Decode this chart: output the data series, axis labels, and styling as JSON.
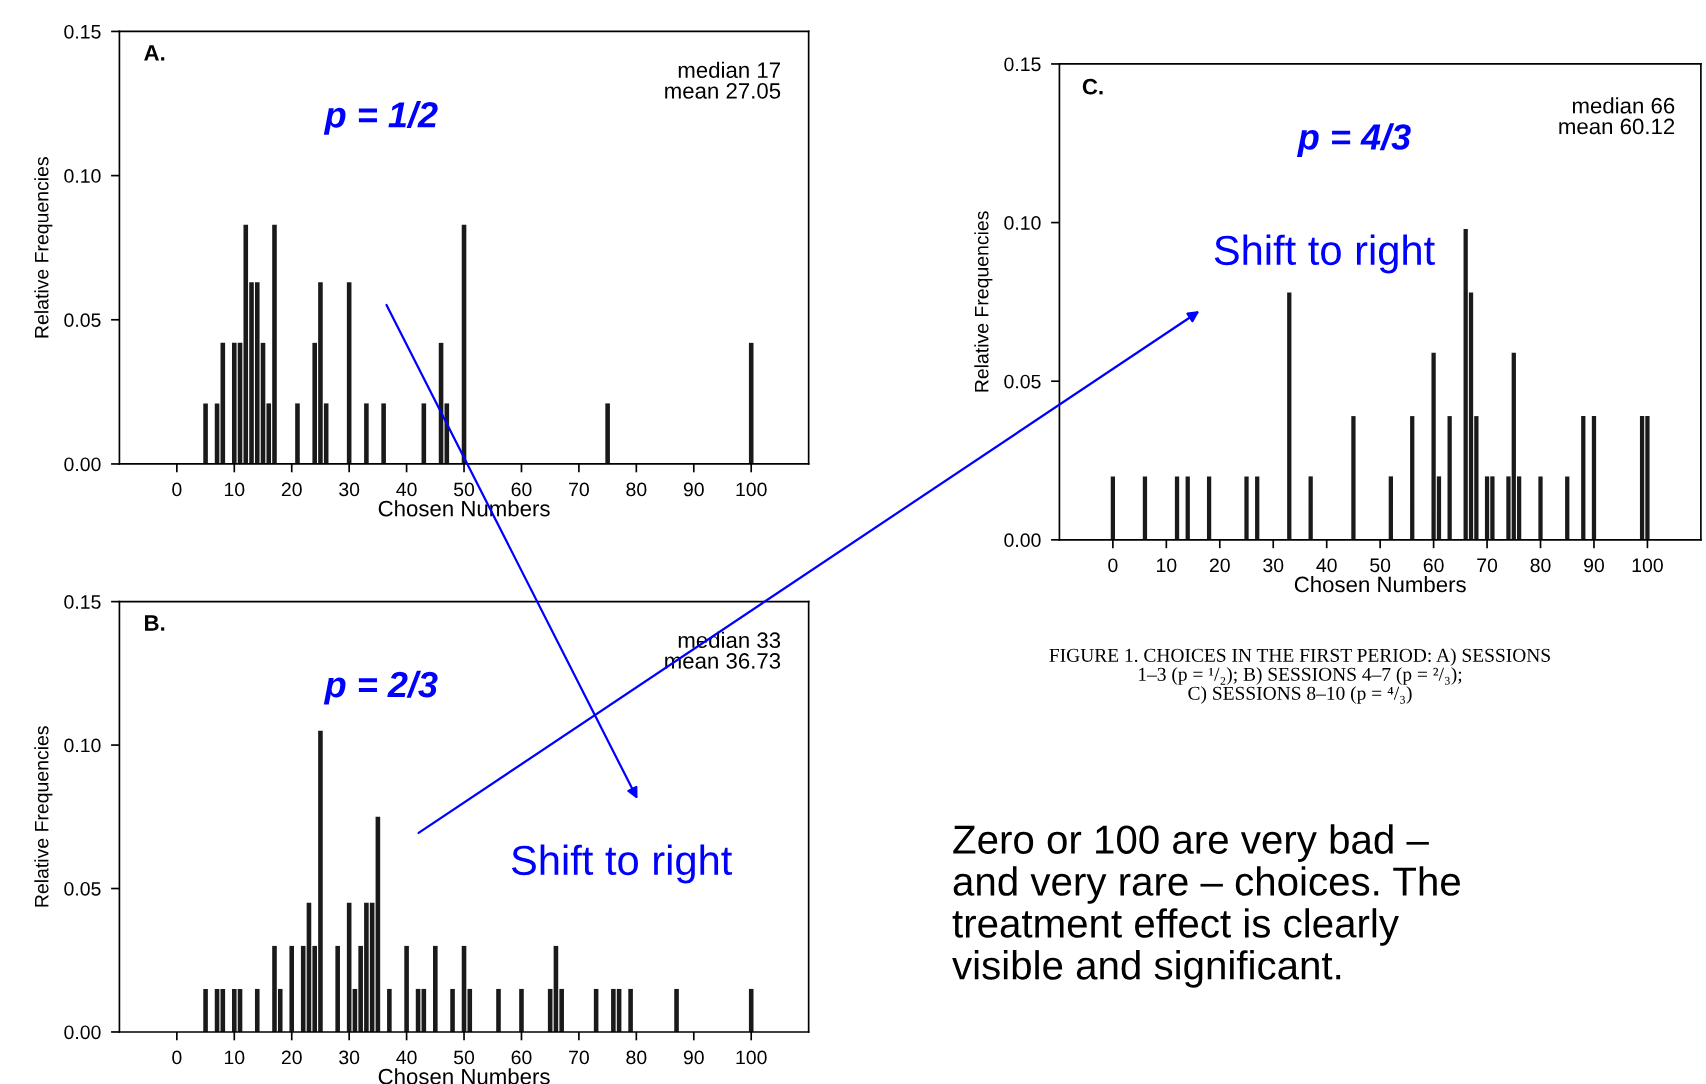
{
  "chart_data": [
    {
      "type": "bar",
      "title": "A.",
      "xlabel": "Chosen Numbers",
      "ylabel": "Relative Frequencies",
      "color": "#1a1a1a",
      "x": [
        5,
        7,
        8,
        10,
        11,
        12,
        13,
        14,
        15,
        16,
        17,
        21,
        24,
        25,
        26,
        30,
        33,
        36,
        43,
        46,
        47,
        50,
        75,
        100
      ],
      "values": [
        0.021,
        0.021,
        0.042,
        0.042,
        0.042,
        0.083,
        0.063,
        0.063,
        0.042,
        0.021,
        0.083,
        0.021,
        0.042,
        0.063,
        0.021,
        0.063,
        0.021,
        0.021,
        0.021,
        0.042,
        0.021,
        0.083,
        0.021,
        0.042
      ],
      "xlim": [
        -10,
        110
      ],
      "xticks": [
        0,
        10,
        20,
        30,
        40,
        50,
        60,
        70,
        80,
        90,
        100
      ],
      "ylim": [
        0,
        0.15
      ],
      "yticks": [
        {
          "value": 0,
          "label": "0.00"
        },
        {
          "value": 0.05,
          "label": "0.05"
        },
        {
          "value": 0.1,
          "label": "0.10"
        },
        {
          "value": 0.15,
          "label": "0.15"
        }
      ],
      "annotations": [
        "median 17\nmean 27.05",
        "p = 1/2"
      ]
    },
    {
      "type": "bar",
      "title": "B.",
      "xlabel": "Chosen Numbers",
      "ylabel": "Relative Frequencies",
      "color": "#1a1a1a",
      "x": [
        5,
        7,
        8,
        10,
        11,
        14,
        17,
        18,
        20,
        22,
        23,
        24,
        25,
        28,
        30,
        31,
        32,
        33,
        34,
        35,
        37,
        40,
        42,
        43,
        45,
        48,
        50,
        51,
        56,
        60,
        65,
        66,
        67,
        73,
        76,
        77,
        79,
        87,
        100
      ],
      "values": [
        0.015,
        0.015,
        0.015,
        0.015,
        0.015,
        0.015,
        0.03,
        0.015,
        0.03,
        0.03,
        0.045,
        0.03,
        0.105,
        0.03,
        0.045,
        0.015,
        0.03,
        0.045,
        0.045,
        0.075,
        0.015,
        0.03,
        0.015,
        0.015,
        0.03,
        0.015,
        0.03,
        0.015,
        0.015,
        0.015,
        0.015,
        0.03,
        0.015,
        0.015,
        0.015,
        0.015,
        0.015,
        0.015,
        0.015
      ],
      "xlim": [
        -10,
        110
      ],
      "xticks": [
        0,
        10,
        20,
        30,
        40,
        50,
        60,
        70,
        80,
        90,
        100
      ],
      "ylim": [
        0,
        0.15
      ],
      "yticks": [
        {
          "value": 0,
          "label": "0.00"
        },
        {
          "value": 0.05,
          "label": "0.05"
        },
        {
          "value": 0.1,
          "label": "0.10"
        },
        {
          "value": 0.15,
          "label": "0.15"
        }
      ],
      "annotations": [
        "median 33\nmean 36.73",
        "p = 2/3",
        "Shift to right"
      ]
    },
    {
      "type": "bar",
      "title": "C.",
      "xlabel": "Chosen Numbers",
      "ylabel": "Relative Frequencies",
      "color": "#1a1a1a",
      "x": [
        0,
        6,
        12,
        14,
        18,
        25,
        27,
        33,
        37,
        45,
        52,
        56,
        60,
        61,
        63,
        66,
        67,
        68,
        70,
        71,
        74,
        75,
        76,
        80,
        85,
        88,
        90,
        99,
        100
      ],
      "values": [
        0.02,
        0.02,
        0.02,
        0.02,
        0.02,
        0.02,
        0.02,
        0.078,
        0.02,
        0.039,
        0.02,
        0.039,
        0.059,
        0.02,
        0.039,
        0.098,
        0.078,
        0.039,
        0.02,
        0.02,
        0.02,
        0.059,
        0.02,
        0.02,
        0.02,
        0.039,
        0.039,
        0.039,
        0.039
      ],
      "xlim": [
        -10,
        110
      ],
      "xticks": [
        0,
        10,
        20,
        30,
        40,
        50,
        60,
        70,
        80,
        90,
        100
      ],
      "ylim": [
        0,
        0.15
      ],
      "yticks": [
        {
          "value": 0,
          "label": "0.00"
        },
        {
          "value": 0.05,
          "label": "0.05"
        },
        {
          "value": 0.1,
          "label": "0.10"
        },
        {
          "value": 0.15,
          "label": "0.15"
        }
      ],
      "annotations": [
        "median 66\nmean 60.12",
        "p = 4/3",
        "Shift to right",
        "FIGURE 1. CHOICES IN THE FIRST PERIOD: A) SESSIONS\n1–3 (p = ¹/₂); B) SESSIONS 4–7 (p = ²/₃);\nC) SESSIONS 8–10 (p = ⁴/₃)",
        "Zero or 100 are very bad –\nand very rare – choices. The\ntreatment effect is clearly\nvisible and significant."
      ]
    }
  ]
}
